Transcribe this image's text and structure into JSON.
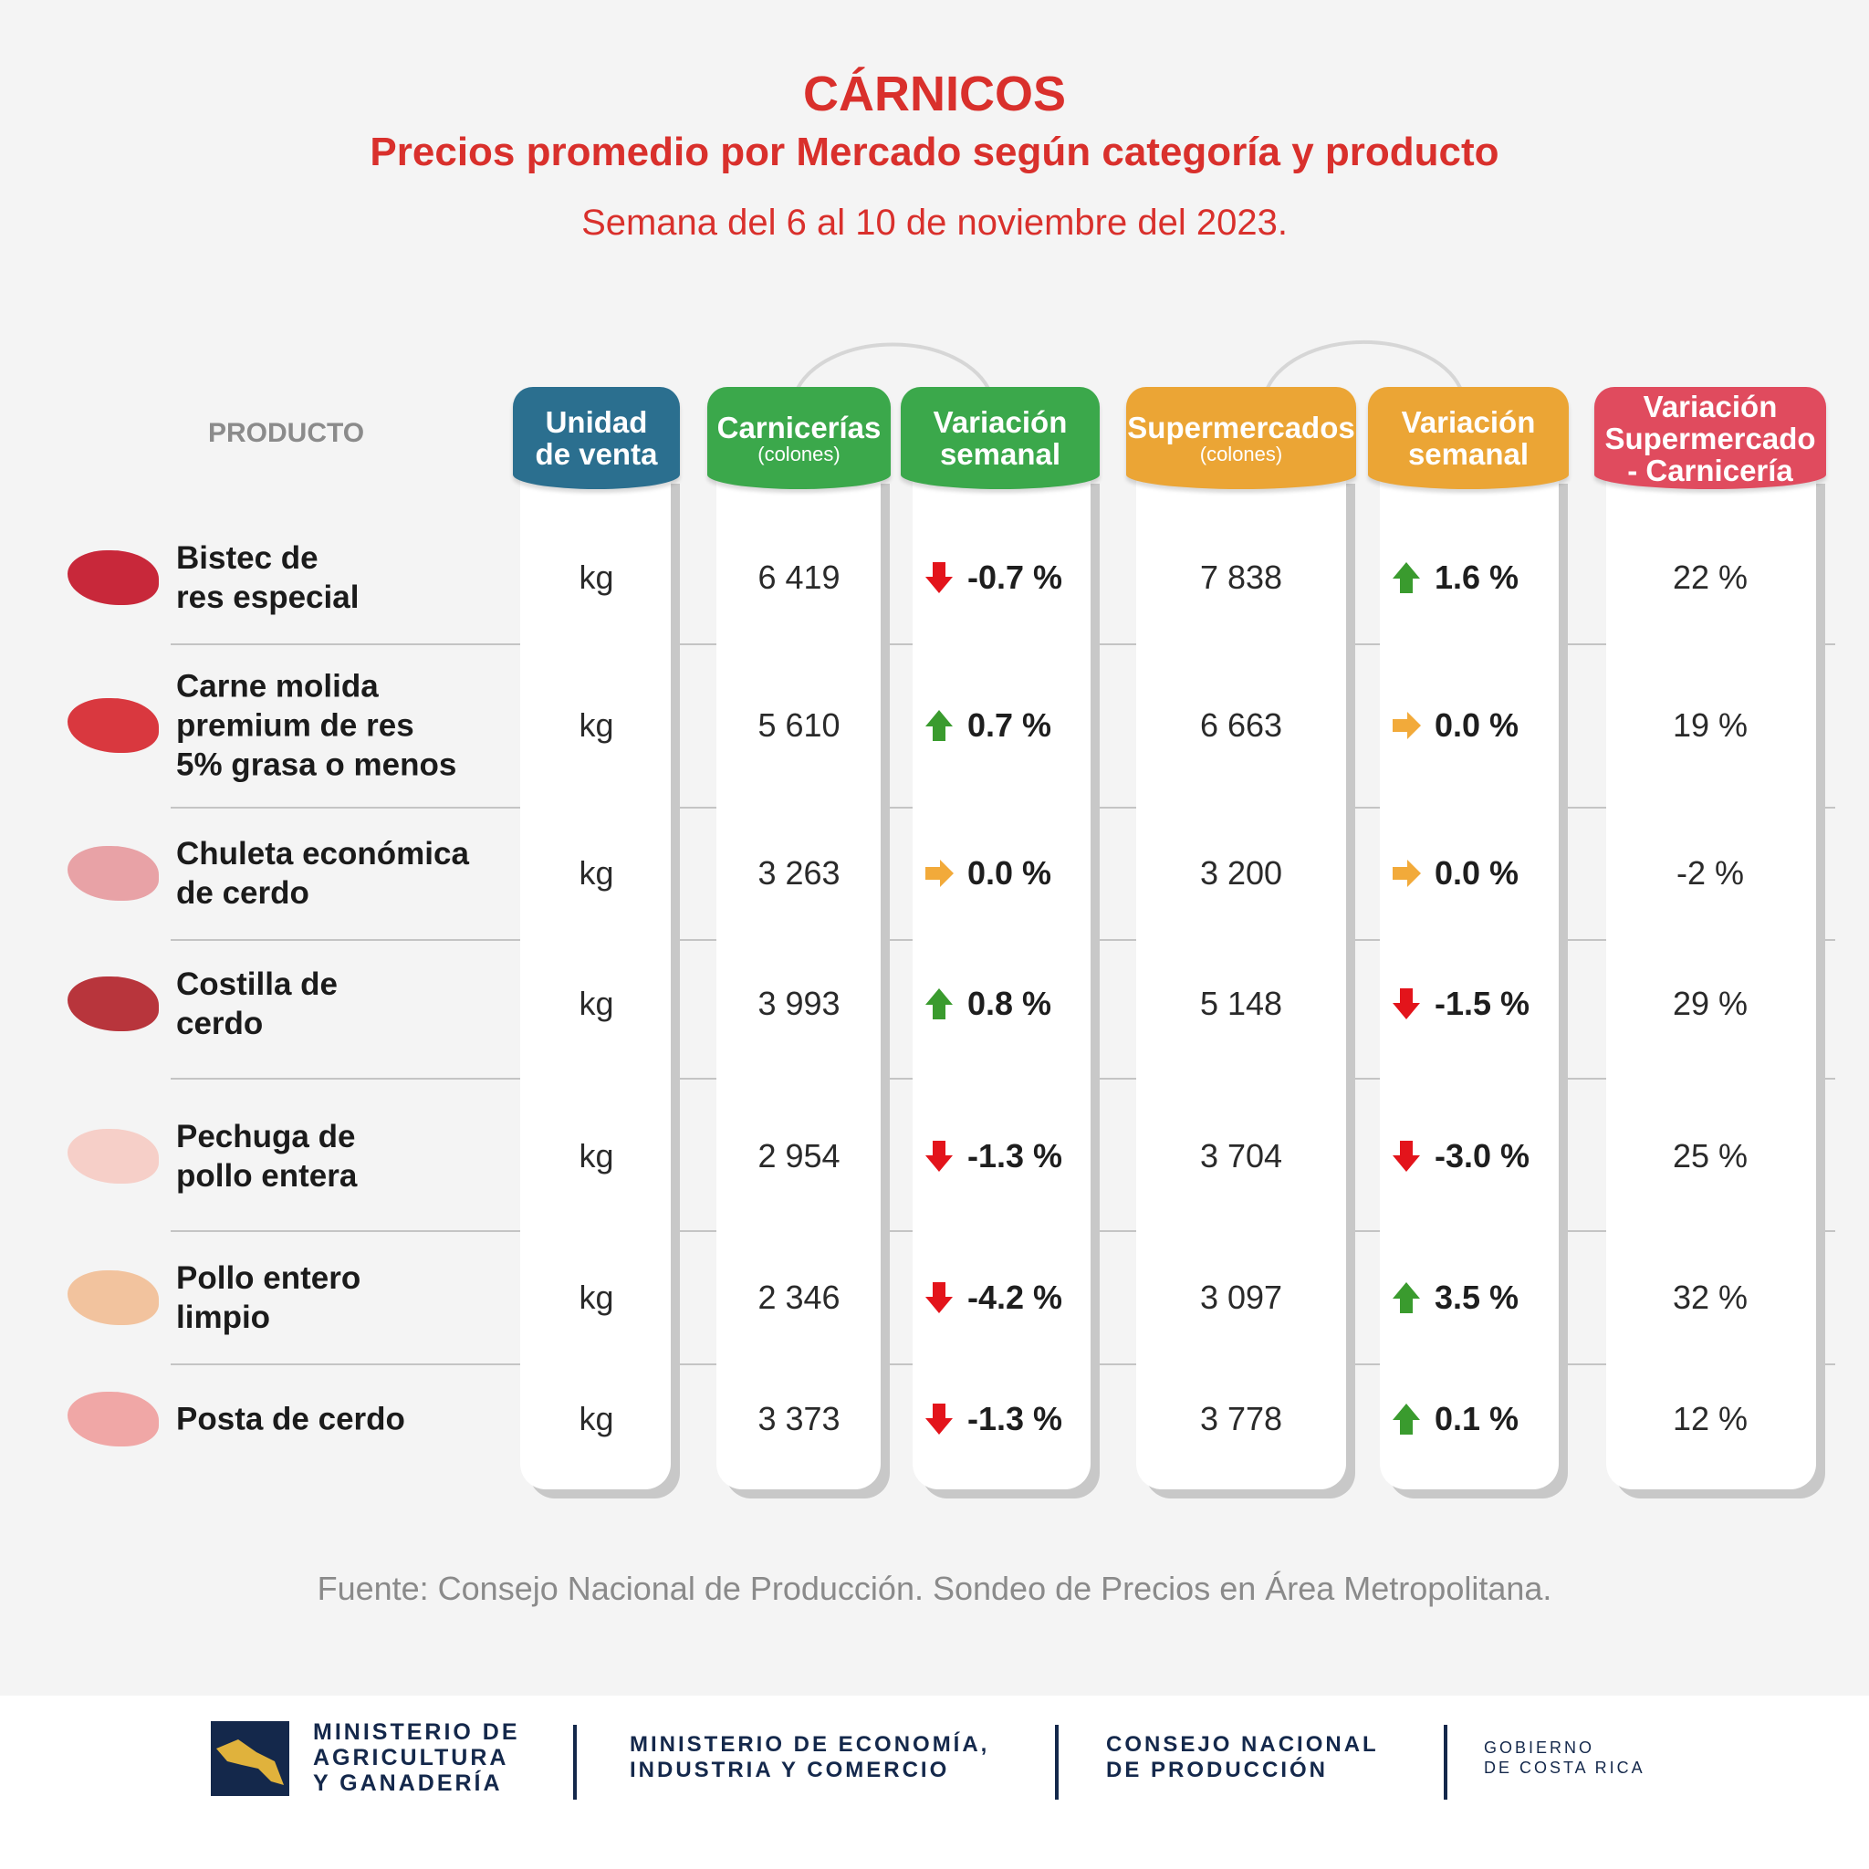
{
  "header": {
    "title": "CÁRNICOS",
    "subtitle": "Precios promedio por Mercado según categoría y producto",
    "week": "Semana del 6 al 10 de noviembre del 2023."
  },
  "table": {
    "product_label": "PRODUCTO",
    "columns": [
      {
        "title": "Unidad\nde venta",
        "color": "#2b6f8f"
      },
      {
        "title": "Carnicerías",
        "note": "(colones)",
        "color": "#3ba84b"
      },
      {
        "title": "Variación\nsemanal",
        "color": "#3ba84b"
      },
      {
        "title": "Supermercados",
        "note": "(colones)",
        "color": "#eba535"
      },
      {
        "title": "Variación\nsemanal",
        "color": "#eba535"
      },
      {
        "title": "Variación\nSupermercado\n- Carnicería",
        "color": "#e04b5e"
      }
    ],
    "rows": [
      {
        "product": "Bistec de\nres especial",
        "cells": [
          "kg",
          "6 419",
          {
            "text": "-0.7 %",
            "trend": "down"
          },
          "7 838",
          {
            "text": "1.6 %",
            "trend": "up"
          },
          "22 %"
        ]
      },
      {
        "product": "Carne molida\npremium de res\n5% grasa o menos",
        "cells": [
          "kg",
          "5 610",
          {
            "text": "0.7 %",
            "trend": "up"
          },
          "6 663",
          {
            "text": "0.0 %",
            "trend": "flat"
          },
          "19 %"
        ]
      },
      {
        "product": "Chuleta económica\nde cerdo",
        "cells": [
          "kg",
          "3 263",
          {
            "text": "0.0 %",
            "trend": "flat"
          },
          "3 200",
          {
            "text": "0.0 %",
            "trend": "flat"
          },
          "-2 %"
        ]
      },
      {
        "product": "Costilla de\ncerdo",
        "cells": [
          "kg",
          "3 993",
          {
            "text": "0.8 %",
            "trend": "up"
          },
          "5 148",
          {
            "text": "-1.5 %",
            "trend": "down"
          },
          "29 %"
        ]
      },
      {
        "product": "Pechuga de\npollo entera",
        "cells": [
          "kg",
          "2 954",
          {
            "text": "-1.3 %",
            "trend": "down"
          },
          "3 704",
          {
            "text": "-3.0 %",
            "trend": "down"
          },
          "25 %"
        ]
      },
      {
        "product": "Pollo entero\nlimpio",
        "cells": [
          "kg",
          "2 346",
          {
            "text": "-4.2 %",
            "trend": "down"
          },
          "3 097",
          {
            "text": "3.5 %",
            "trend": "up"
          },
          "32 %"
        ]
      },
      {
        "product": "Posta de cerdo",
        "cells": [
          "kg",
          "3 373",
          {
            "text": "-1.3 %",
            "trend": "down"
          },
          "3 778",
          {
            "text": "0.1 %",
            "trend": "up"
          },
          "12 %"
        ]
      }
    ]
  },
  "source": "Fuente: Consejo Nacional de Producción. Sondeo de Precios en Área Metropolitana.",
  "footer": {
    "logos": [
      "MINISTERIO DE\nAGRICULTURA\nY GANADERÍA",
      "MINISTERIO DE ECONOMÍA,\nINDUSTRIA Y COMERCIO",
      "CONSEJO NACIONAL\nDE PRODUCCIÓN",
      "GOBIERNO\nDE COSTA RICA"
    ]
  }
}
